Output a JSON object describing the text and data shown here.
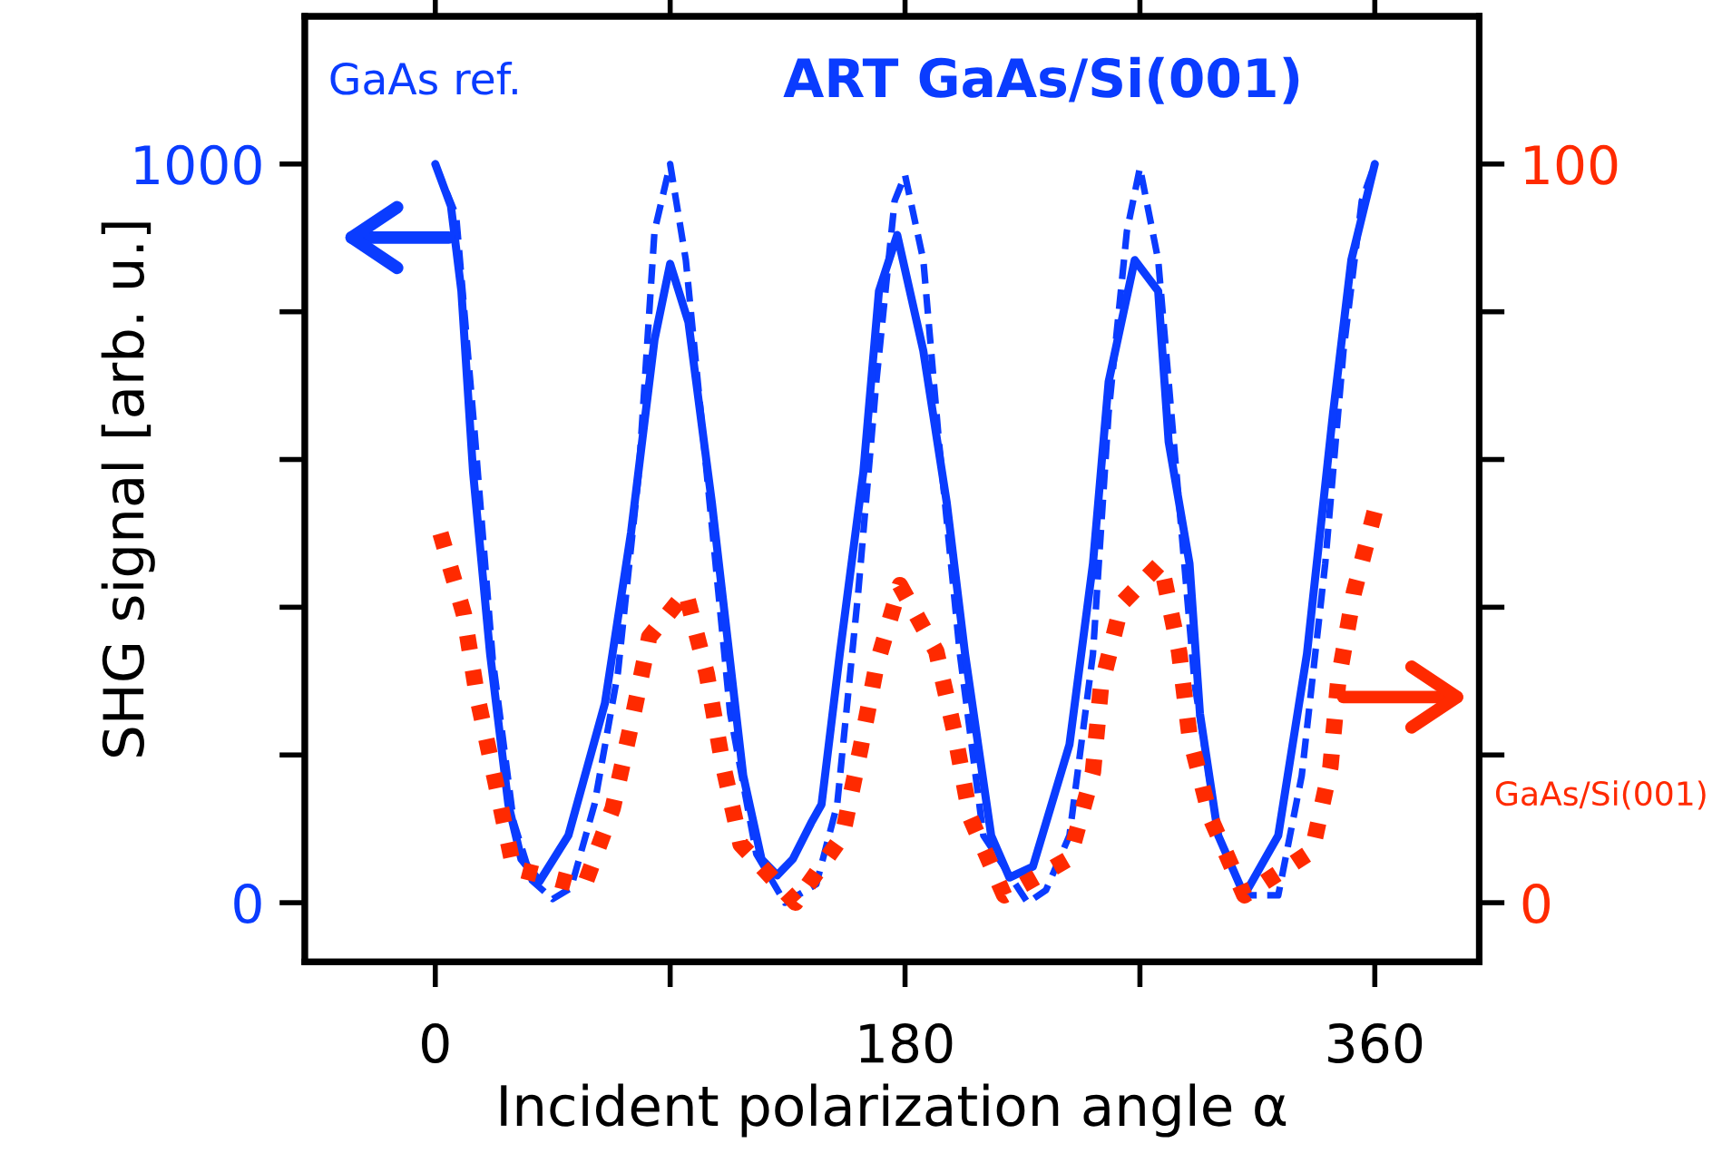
{
  "chart_data": {
    "type": "line",
    "xlabel": "Incident polarization angle α",
    "ylabel": "SHG signal [arb. u.]",
    "xlim": [
      -50,
      400
    ],
    "xticks": [
      0,
      {
        "value": 90,
        "label": null
      },
      180,
      {
        "value": 270,
        "label": null
      },
      360
    ],
    "ylim": [
      -80,
      1200
    ],
    "yticks": [
      0,
      {
        "value": 200,
        "label": null
      },
      {
        "value": 400,
        "label": null
      },
      {
        "value": 600,
        "label": null
      },
      {
        "value": 800,
        "label": null
      },
      1000
    ],
    "y2lim": [
      -8,
      120
    ],
    "y2ticks": [
      0,
      {
        "value": 20,
        "label": null
      },
      {
        "value": 40,
        "label": null
      },
      {
        "value": 60,
        "label": null
      },
      {
        "value": 80,
        "label": null
      },
      100
    ],
    "grid": false,
    "legend": false,
    "series": [
      {
        "name": "GaAs ref.",
        "color": "#0a3cff",
        "line_style": "dashed",
        "x": [
          0,
          8,
          15,
          22,
          30,
          37,
          45,
          52,
          61,
          70,
          78,
          84,
          90,
          96,
          104,
          113,
          123,
          134,
          146,
          154,
          162,
          169,
          176,
          180,
          187,
          193,
          201,
          210,
          227,
          234,
          243,
          252,
          258,
          265,
          270,
          277,
          284,
          291,
          300,
          310,
          323,
          332,
          341,
          348,
          355,
          360
        ],
        "values": [
          1000,
          930,
          640,
          330,
          110,
          30,
          5,
          20,
          133,
          312,
          582,
          909,
          1000,
          870,
          582,
          256,
          66,
          0,
          25,
          133,
          418,
          705,
          950,
          985,
          870,
          624,
          337,
          91,
          0,
          17,
          91,
          337,
          663,
          909,
          995,
          870,
          582,
          295,
          91,
          10,
          10,
          172,
          459,
          747,
          950,
          1000
        ]
      },
      {
        "name": "ART GaAs/Si(001)",
        "color": "#0a3cff",
        "line_style": "solid",
        "x": [
          0,
          6,
          10,
          14.5,
          21,
          28,
          33,
          40,
          51,
          65,
          75,
          84,
          90,
          97,
          106,
          118,
          125,
          131,
          137,
          144,
          148,
          155,
          164,
          170,
          177,
          187,
          196,
          203,
          213,
          220,
          229,
          243,
          252,
          258,
          268,
          277,
          281,
          289,
          293,
          300,
          310,
          323,
          334,
          344,
          351,
          360
        ],
        "values": [
          1000,
          943,
          828,
          582,
          337,
          133,
          59,
          29,
          91,
          270,
          501,
          762,
          865,
          786,
          541,
          172,
          59,
          37,
          59,
          108,
          133,
          337,
          582,
          828,
          904,
          747,
          541,
          337,
          91,
          34,
          49,
          214,
          459,
          705,
          870,
          828,
          624,
          459,
          256,
          91,
          10,
          91,
          337,
          663,
          870,
          1000
        ]
      },
      {
        "name": "GaAs/Si(001)",
        "color": "#ff2a00",
        "line_style": "dotted",
        "axis": "y2",
        "x": [
          2,
          11,
          16,
          23,
          30,
          57,
          68,
          75,
          82,
          96,
          104,
          110,
          117,
          138,
          156,
          163,
          169,
          178,
          192,
          199,
          205,
          218,
          243,
          252,
          255,
          263,
          278,
          285,
          289,
          297,
          310,
          336,
          343,
          346,
          352,
          360
        ],
        "values": [
          50,
          39,
          28,
          16.5,
          4.7,
          2.2,
          12.8,
          24,
          36,
          42,
          31,
          19,
          7.9,
          0,
          9,
          21,
          32,
          43,
          34,
          23,
          11.5,
          1,
          6,
          17.7,
          29,
          40.5,
          46,
          34,
          22.6,
          11.5,
          1,
          7,
          18.4,
          30,
          42,
          53
        ]
      }
    ]
  }
}
